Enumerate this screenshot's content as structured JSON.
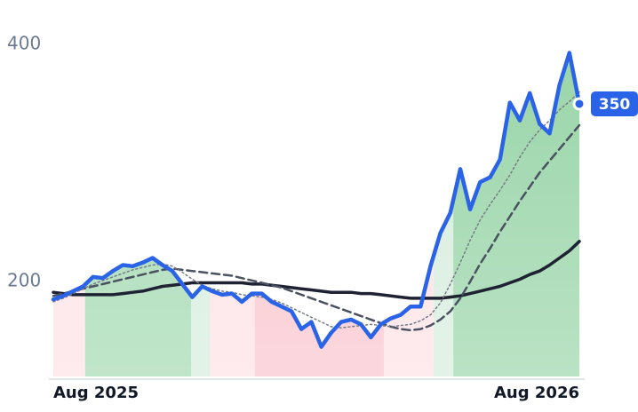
{
  "chart_data": {
    "type": "line",
    "x": [
      0,
      1,
      2,
      3,
      4,
      5,
      6,
      7,
      8,
      9,
      10,
      11,
      12,
      13,
      14,
      15,
      16,
      17,
      18,
      19,
      20,
      21,
      22,
      23,
      24,
      25,
      26,
      27,
      28,
      29,
      30,
      31,
      32,
      33,
      34,
      35,
      36,
      37,
      38,
      39,
      40,
      41,
      42,
      43,
      44,
      45,
      46,
      47,
      48,
      49,
      50,
      51,
      52,
      53
    ],
    "xlim": [
      0,
      53
    ],
    "xticks": [
      {
        "value": 0,
        "label": "Aug 2025"
      },
      {
        "value": 53,
        "label": "Aug 2026"
      }
    ],
    "ylim": [
      120,
      420
    ],
    "yticks": [
      200,
      400
    ],
    "series": [
      {
        "color": "#2a62e8",
        "values": [
          185,
          188,
          192,
          196,
          204,
          203,
          209,
          214,
          213,
          216,
          220,
          214,
          209,
          198,
          187,
          196,
          192,
          189,
          190,
          183,
          190,
          190,
          183,
          179,
          175,
          160,
          166,
          145,
          157,
          166,
          168,
          164,
          153,
          164,
          169,
          172,
          179,
          179,
          213,
          241,
          258,
          295,
          261,
          284,
          288,
          303,
          351,
          336,
          359,
          333,
          325,
          366,
          393,
          350
        ]
      },
      {
        "color": "#777c88",
        "style": "dotted",
        "values": [
          183,
          186,
          190,
          194,
          198,
          201,
          204,
          207,
          210,
          212,
          214,
          215,
          213,
          208,
          202,
          197,
          194,
          192,
          191,
          189,
          188,
          187,
          185,
          182,
          178,
          174,
          170,
          166,
          162,
          161,
          162,
          163,
          164,
          163,
          162,
          163,
          164,
          167,
          172,
          182,
          198,
          216,
          235,
          252,
          265,
          277,
          290,
          305,
          318,
          328,
          336,
          345,
          352,
          360
        ]
      },
      {
        "color": "#4a5160",
        "style": "dashed",
        "values": [
          188,
          190,
          192,
          194,
          196,
          198,
          200,
          202,
          204,
          206,
          208,
          210,
          211,
          210,
          209,
          208,
          207,
          206,
          205,
          203,
          201,
          199,
          197,
          195,
          192,
          189,
          186,
          183,
          180,
          177,
          174,
          171,
          168,
          165,
          162,
          160,
          159,
          160,
          163,
          168,
          175,
          186,
          200,
          215,
          228,
          242,
          255,
          268,
          280,
          292,
          302,
          312,
          322,
          332
        ]
      },
      {
        "color": "#1e2233",
        "style": "solid",
        "values": [
          191,
          190,
          189,
          189,
          189,
          189,
          189,
          190,
          191,
          192,
          194,
          196,
          197,
          198,
          199,
          199,
          199,
          199,
          199,
          199,
          198,
          198,
          197,
          196,
          195,
          194,
          193,
          192,
          191,
          191,
          191,
          190,
          190,
          189,
          188,
          187,
          186,
          186,
          186,
          186,
          187,
          188,
          190,
          192,
          194,
          196,
          199,
          202,
          206,
          209,
          214,
          220,
          226,
          234
        ]
      }
    ],
    "regimes": [
      {
        "start": 0,
        "end": 3.2,
        "color": "#fde0e4"
      },
      {
        "start": 3.2,
        "end": 13.9,
        "color": "#9fd8ae"
      },
      {
        "start": 13.9,
        "end": 15.8,
        "color": "#d4ecdb"
      },
      {
        "start": 15.8,
        "end": 20.3,
        "color": "#fde0e4"
      },
      {
        "start": 20.3,
        "end": 33.3,
        "color": "#f9c2cb"
      },
      {
        "start": 33.3,
        "end": 38.3,
        "color": "#fde0e4"
      },
      {
        "start": 38.3,
        "end": 40.3,
        "color": "#d4ecdb"
      },
      {
        "start": 40.3,
        "end": 53,
        "color": "#95d3a5"
      }
    ]
  }
}
